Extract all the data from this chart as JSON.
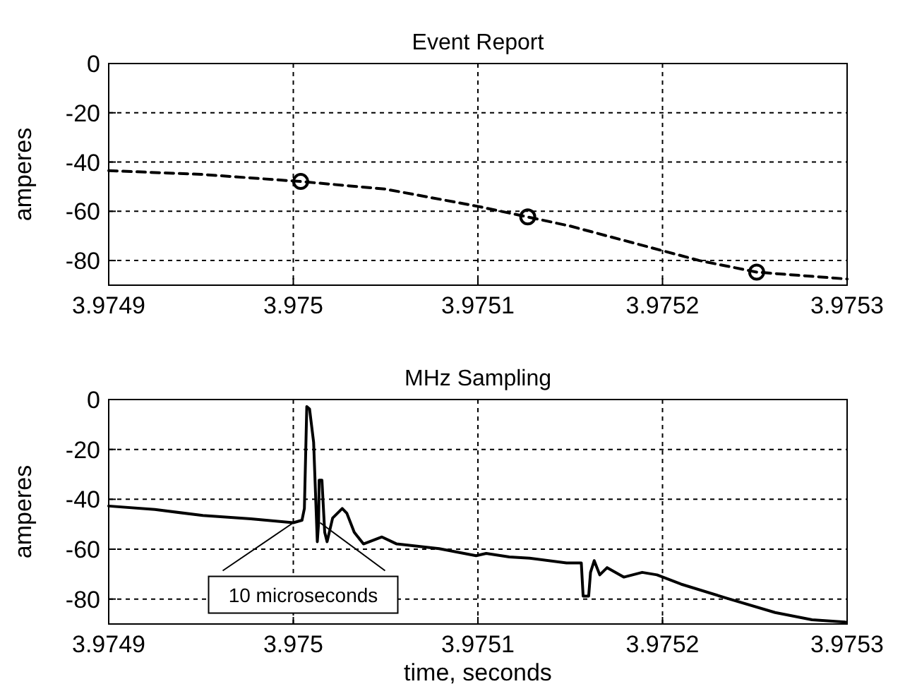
{
  "chart_data": [
    {
      "type": "line",
      "title": "Event Report",
      "ylabel": "amperes",
      "xlim": [
        3.9749,
        3.9753
      ],
      "xticks": [
        3.9749,
        3.975,
        3.9751,
        3.9752,
        3.9753
      ],
      "ylim": [
        -90,
        0
      ],
      "yticks": [
        0,
        -20,
        -40,
        -60,
        -80
      ],
      "grid": true,
      "series": [
        {
          "type": "line",
          "color": "#000000",
          "line_style": "dashed",
          "x": [
            3.9749,
            3.97495,
            3.975004,
            3.97505,
            3.9751,
            3.975127,
            3.97515,
            3.9752,
            3.97522,
            3.975251,
            3.9753
          ],
          "values": [
            -43.5,
            -45,
            -47.9,
            -51,
            -58,
            -62.3,
            -66,
            -76,
            -80,
            -84.7,
            -87.5
          ]
        },
        {
          "type": "scatter",
          "color": "#000000",
          "marker": "circle",
          "x": [
            3.975004,
            3.975127,
            3.975251
          ],
          "values": [
            -47.9,
            -62.3,
            -84.7
          ]
        }
      ]
    },
    {
      "type": "line",
      "title": "MHz Sampling",
      "xlabel": "time, seconds",
      "ylabel": "amperes",
      "xlim": [
        3.9749,
        3.9753
      ],
      "xticks": [
        3.9749,
        3.975,
        3.9751,
        3.9752,
        3.9753
      ],
      "ylim": [
        -90,
        0
      ],
      "yticks": [
        0,
        -20,
        -40,
        -60,
        -80
      ],
      "grid": true,
      "annotations": [
        {
          "text": "10 microseconds",
          "x": 3.975,
          "y": -49.4
        }
      ],
      "series": [
        {
          "type": "line",
          "color": "#000000",
          "line_style": "solid",
          "x": [
            3.9749,
            3.974925,
            3.974951,
            3.974977,
            3.975,
            3.9750047,
            3.975006,
            3.9750073,
            3.9750088,
            3.975011,
            3.975013,
            3.9750137,
            3.975014,
            3.9750155,
            3.975017,
            3.9750183,
            3.9750213,
            3.9750265,
            3.975029,
            3.975033,
            3.975038,
            3.975048,
            3.975056,
            3.975079,
            3.975099,
            3.9751045,
            3.975117,
            3.975128,
            3.975148,
            3.975156,
            3.975157,
            3.97516,
            3.975161,
            3.975163,
            3.975166,
            3.97517,
            3.975179,
            3.975189,
            3.975197,
            3.97521,
            3.975235,
            3.975261,
            3.975281,
            3.975299
          ],
          "values": [
            -42.7,
            -44.1,
            -46.5,
            -47.8,
            -49.4,
            -48.4,
            -43.7,
            -2.8,
            -3.8,
            -17.1,
            -57,
            -49.4,
            -32.3,
            -32.3,
            -53.2,
            -57,
            -47.5,
            -43.7,
            -45.6,
            -53.2,
            -57.9,
            -55.1,
            -57.9,
            -59.8,
            -62.6,
            -61.7,
            -63.1,
            -63.6,
            -65.5,
            -65.5,
            -78.8,
            -78.8,
            -69.3,
            -64.6,
            -70.3,
            -67.4,
            -71.2,
            -69.3,
            -70.3,
            -74,
            -79.7,
            -85.4,
            -88.3,
            -89.2
          ]
        }
      ]
    }
  ]
}
